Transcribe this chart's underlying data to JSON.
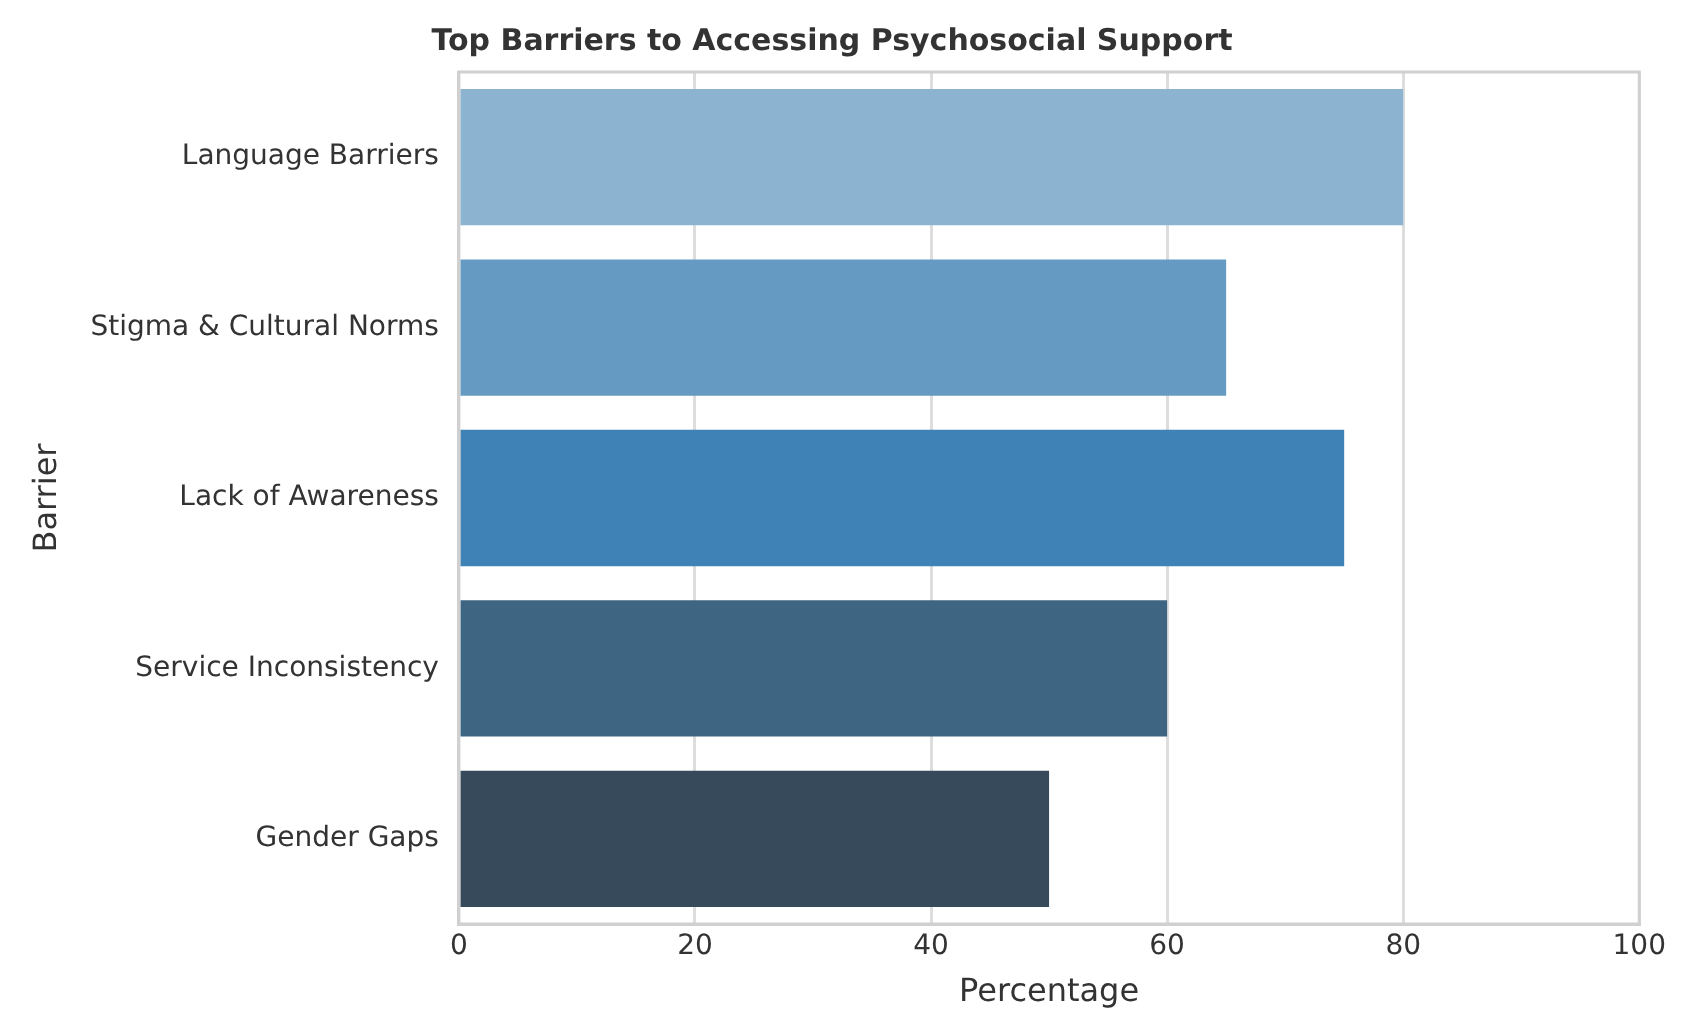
{
  "chart_data": {
    "type": "bar",
    "orientation": "horizontal",
    "title": "Top Barriers to Accessing Psychosocial Support",
    "xlabel": "Percentage",
    "ylabel": "Barrier",
    "categories": [
      "Language Barriers",
      "Stigma & Cultural Norms",
      "Lack of Awareness",
      "Service Inconsistency",
      "Gender Gaps"
    ],
    "values": [
      80,
      65,
      75,
      60,
      50
    ],
    "colors": [
      "#8cb4d0",
      "#659bc2",
      "#3f82b5",
      "#3e6682",
      "#364a5c"
    ],
    "xlim": [
      0,
      100
    ],
    "xticks": [
      0,
      20,
      40,
      60,
      80,
      100
    ],
    "grid": "x",
    "legend": false
  }
}
